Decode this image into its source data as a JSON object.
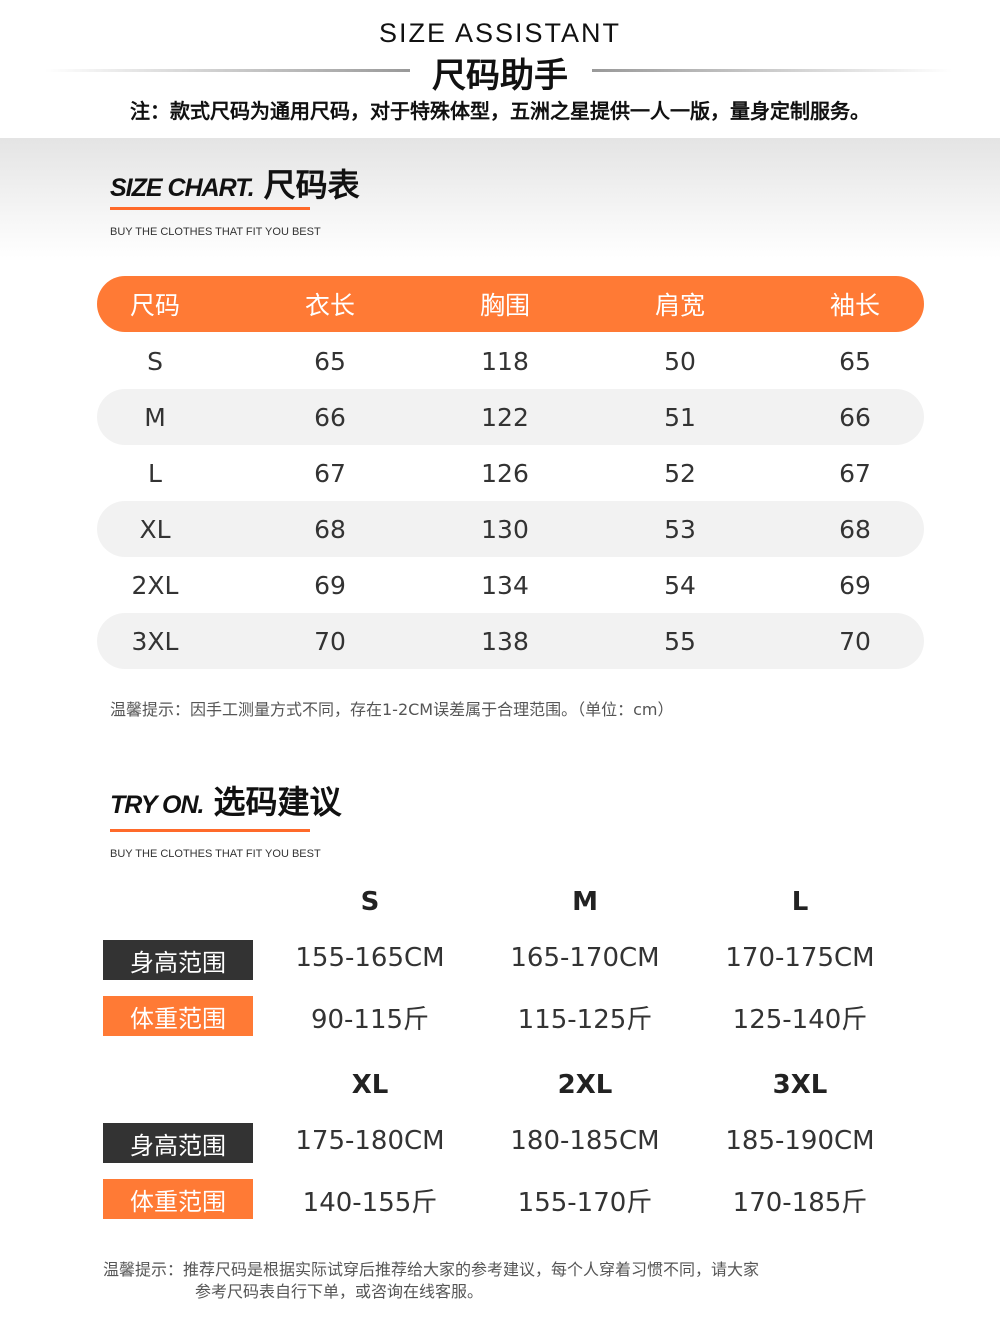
{
  "header": {
    "title_en": "SIZE ASSISTANT",
    "title_cn": "尺码助手",
    "note": "注：款式尺码为通用尺码，对于特殊体型，五洲之星提供一人一版，量身定制服务。"
  },
  "colors": {
    "accent": "#ff7a35",
    "dark_label": "#333333",
    "row_alt": "#f2f2f2"
  },
  "size_chart": {
    "heading_en": "SIZE CHART.",
    "heading_cn": "尺码表",
    "subtitle": "BUY THE CLOTHES THAT FIT YOU BEST",
    "columns": [
      "尺码",
      "衣长",
      "胸围",
      "肩宽",
      "袖长"
    ],
    "rows": [
      [
        "S",
        "65",
        "118",
        "50",
        "65"
      ],
      [
        "M",
        "66",
        "122",
        "51",
        "66"
      ],
      [
        "L",
        "67",
        "126",
        "52",
        "67"
      ],
      [
        "XL",
        "68",
        "130",
        "53",
        "68"
      ],
      [
        "2XL",
        "69",
        "134",
        "54",
        "69"
      ],
      [
        "3XL",
        "70",
        "138",
        "55",
        "70"
      ]
    ],
    "tip": "温馨提示：因手工测量方式不同，存在1-2CM误差属于合理范围。（单位：cm）"
  },
  "try_on": {
    "heading_en": "TRY ON.",
    "heading_cn": "选码建议",
    "subtitle": "BUY THE CLOTHES THAT FIT YOU BEST",
    "height_label": "身高范围",
    "weight_label": "体重范围",
    "groups": [
      {
        "sizes": [
          "S",
          "M",
          "L"
        ],
        "heights": [
          "155-165CM",
          "165-170CM",
          "170-175CM"
        ],
        "weights": [
          "90-115斤",
          "115-125斤",
          "125-140斤"
        ]
      },
      {
        "sizes": [
          "XL",
          "2XL",
          "3XL"
        ],
        "heights": [
          "175-180CM",
          "180-185CM",
          "185-190CM"
        ],
        "weights": [
          "140-155斤",
          "155-170斤",
          "170-185斤"
        ]
      }
    ],
    "tip_line1": "温馨提示：推荐尺码是根据实际试穿后推荐给大家的参考建议，每个人穿着习惯不同，请大家",
    "tip_line2": "参考尺码表自行下单，或咨询在线客服。"
  }
}
